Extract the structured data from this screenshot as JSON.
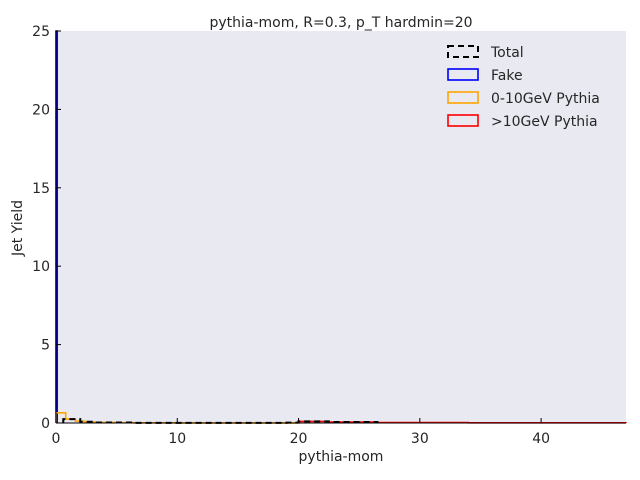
{
  "chart_data": {
    "type": "step",
    "title": "pythia-mom, R=0.3, p_T hardmin=20",
    "xlabel": "pythia-mom",
    "ylabel": "Jet Yield",
    "xlim": [
      0,
      47
    ],
    "ylim": [
      0,
      25
    ],
    "xticks": [
      0,
      10,
      20,
      30,
      40
    ],
    "yticks": [
      0,
      5,
      10,
      15,
      20,
      25
    ],
    "xtick_labels": [
      "0",
      "10",
      "20",
      "30",
      "40"
    ],
    "ytick_labels": [
      "0",
      "5",
      "10",
      "15",
      "20",
      "25"
    ],
    "grid": false,
    "background": "#e9e9f2",
    "legend": {
      "placement": "top-right",
      "entries": [
        {
          "label": "Total",
          "color": "#000000",
          "style": "dashed"
        },
        {
          "label": "Fake",
          "color": "#0000ff",
          "style": "solid"
        },
        {
          "label": "0-10GeV Pythia",
          "color": "#ffa500",
          "style": "solid"
        },
        {
          "label": ">10GeV Pythia",
          "color": "#ff0000",
          "style": "solid"
        }
      ]
    },
    "series": [
      {
        "name": "Fake",
        "color": "#0000ff",
        "style": "solid",
        "edges": [
          0,
          0.1
        ],
        "values": [
          25
        ]
      },
      {
        "name": "0-10GeV Pythia",
        "color": "#ffa500",
        "style": "solid",
        "edges": [
          0,
          0.8,
          1.6,
          2.4,
          3.2,
          4.8,
          6.4,
          10,
          20
        ],
        "values": [
          0.65,
          0.25,
          0.12,
          0.07,
          0.04,
          0.02,
          0.01,
          0.005
        ]
      },
      {
        "name": ">10GeV Pythia",
        "color": "#ff0000",
        "style": "solid",
        "edges": [
          20,
          22.5,
          26.5,
          34,
          47
        ],
        "values": [
          0.1,
          0.06,
          0.03,
          0.01
        ]
      },
      {
        "name": "Total",
        "color": "#000000",
        "style": "dashed",
        "edges": [
          0.6,
          2,
          3.2,
          6.4,
          19,
          20,
          22.5,
          26.5
        ],
        "values": [
          0.25,
          0.08,
          0.03,
          0.01,
          0.02,
          0.1,
          0.06,
          0.03
        ]
      }
    ]
  }
}
